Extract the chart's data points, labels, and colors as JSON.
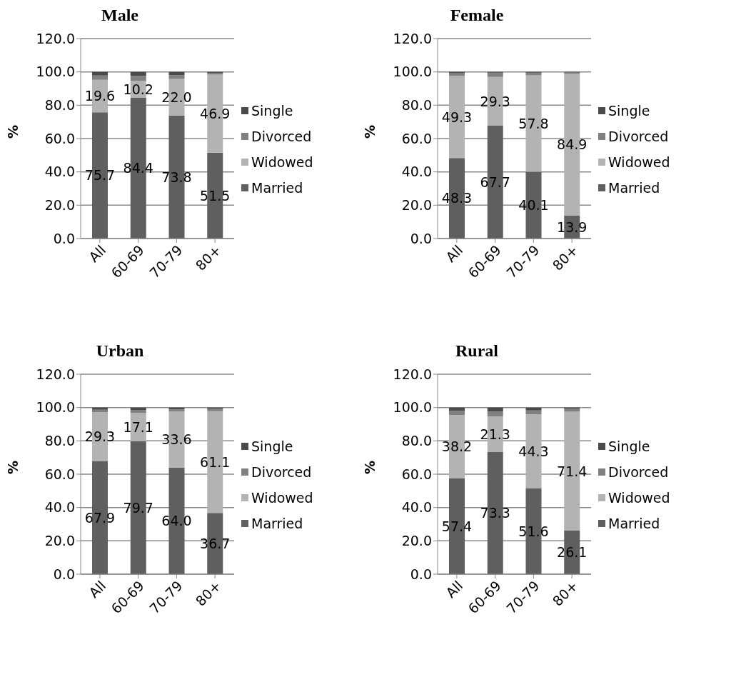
{
  "chart_data": [
    {
      "type": "bar",
      "title": "Male",
      "ylabel": "%",
      "categories": [
        "All",
        "60-69",
        "70-79",
        "80+"
      ],
      "stacked": true,
      "grid": "y",
      "legend": "right",
      "ylim": [
        0,
        120
      ],
      "yticks": [
        {
          "value": 0,
          "label": "0.0"
        },
        {
          "value": 20,
          "label": "20.0"
        },
        {
          "value": 40,
          "label": "40.0"
        },
        {
          "value": 60,
          "label": "60.0"
        },
        {
          "value": 80,
          "label": "80.0"
        },
        {
          "value": 100,
          "label": "100.0"
        },
        {
          "value": 120,
          "label": "120.0"
        }
      ],
      "series": [
        {
          "name": "Married",
          "color": "#5f5f5f",
          "values": [
            75.7,
            84.4,
            73.8,
            51.5
          ],
          "value_labels": [
            "75.7",
            "84.4",
            "73.8",
            "51.5"
          ]
        },
        {
          "name": "Widowed",
          "color": "#b3b3b3",
          "values": [
            19.6,
            10.2,
            22.0,
            46.9
          ],
          "value_labels": [
            "19.6",
            "10.2",
            "22.0",
            "46.9"
          ]
        },
        {
          "name": "Divorced",
          "color": "#808080",
          "values": [
            2.5,
            3.0,
            2.2,
            1.0
          ]
        },
        {
          "name": "Single",
          "color": "#4a4a4a",
          "values": [
            2.2,
            2.4,
            2.0,
            0.6
          ]
        }
      ]
    },
    {
      "type": "bar",
      "title": "Female",
      "ylabel": "%",
      "categories": [
        "All",
        "60-69",
        "70-79",
        "80+"
      ],
      "stacked": true,
      "grid": "y",
      "legend": "right",
      "ylim": [
        0,
        120
      ],
      "yticks": [
        {
          "value": 0,
          "label": "0.0"
        },
        {
          "value": 20,
          "label": "20.0"
        },
        {
          "value": 40,
          "label": "40.0"
        },
        {
          "value": 60,
          "label": "60.0"
        },
        {
          "value": 80,
          "label": "80.0"
        },
        {
          "value": 100,
          "label": "100.0"
        },
        {
          "value": 120,
          "label": "120.0"
        }
      ],
      "series": [
        {
          "name": "Married",
          "color": "#5f5f5f",
          "values": [
            48.3,
            67.7,
            40.1,
            13.9
          ],
          "value_labels": [
            "48.3",
            "67.7",
            "40.1",
            "13.9"
          ]
        },
        {
          "name": "Widowed",
          "color": "#b3b3b3",
          "values": [
            49.3,
            29.3,
            57.8,
            84.9
          ],
          "value_labels": [
            "49.3",
            "29.3",
            "57.8",
            "84.9"
          ]
        },
        {
          "name": "Divorced",
          "color": "#808080",
          "values": [
            1.8,
            2.5,
            1.6,
            0.8
          ]
        },
        {
          "name": "Single",
          "color": "#4a4a4a",
          "values": [
            0.6,
            0.5,
            0.5,
            0.4
          ]
        }
      ]
    },
    {
      "type": "bar",
      "title": "Urban",
      "ylabel": "%",
      "categories": [
        "All",
        "60-69",
        "70-79",
        "80+"
      ],
      "stacked": true,
      "grid": "y",
      "legend": "right",
      "ylim": [
        0,
        120
      ],
      "yticks": [
        {
          "value": 0,
          "label": "0.0"
        },
        {
          "value": 20,
          "label": "20.0"
        },
        {
          "value": 40,
          "label": "40.0"
        },
        {
          "value": 60,
          "label": "60.0"
        },
        {
          "value": 80,
          "label": "80.0"
        },
        {
          "value": 100,
          "label": "100.0"
        },
        {
          "value": 120,
          "label": "120.0"
        }
      ],
      "series": [
        {
          "name": "Married",
          "color": "#5f5f5f",
          "values": [
            67.9,
            79.7,
            64.0,
            36.7
          ],
          "value_labels": [
            "67.9",
            "79.7",
            "64.0",
            "36.7"
          ]
        },
        {
          "name": "Widowed",
          "color": "#b3b3b3",
          "values": [
            29.3,
            17.1,
            33.6,
            61.1
          ],
          "value_labels": [
            "29.3",
            "17.1",
            "33.6",
            "61.1"
          ]
        },
        {
          "name": "Divorced",
          "color": "#808080",
          "values": [
            1.5,
            1.8,
            1.3,
            1.4
          ]
        },
        {
          "name": "Single",
          "color": "#4a4a4a",
          "values": [
            1.3,
            1.4,
            1.1,
            0.8
          ]
        }
      ]
    },
    {
      "type": "bar",
      "title": "Rural",
      "ylabel": "%",
      "categories": [
        "All",
        "60-69",
        "70-79",
        "80+"
      ],
      "stacked": true,
      "grid": "y",
      "legend": "right",
      "ylim": [
        0,
        120
      ],
      "yticks": [
        {
          "value": 0,
          "label": "0.0"
        },
        {
          "value": 20,
          "label": "20.0"
        },
        {
          "value": 40,
          "label": "40.0"
        },
        {
          "value": 60,
          "label": "60.0"
        },
        {
          "value": 80,
          "label": "80.0"
        },
        {
          "value": 100,
          "label": "100.0"
        },
        {
          "value": 120,
          "label": "120.0"
        }
      ],
      "series": [
        {
          "name": "Married",
          "color": "#5f5f5f",
          "values": [
            57.4,
            73.3,
            51.6,
            26.1
          ],
          "value_labels": [
            "57.4",
            "73.3",
            "51.6",
            "26.1"
          ]
        },
        {
          "name": "Widowed",
          "color": "#b3b3b3",
          "values": [
            38.2,
            21.3,
            44.3,
            71.4
          ],
          "value_labels": [
            "38.2",
            "21.3",
            "44.3",
            "71.4"
          ]
        },
        {
          "name": "Divorced",
          "color": "#808080",
          "values": [
            2.4,
            3.0,
            2.3,
            1.7
          ]
        },
        {
          "name": "Single",
          "color": "#4a4a4a",
          "values": [
            2.0,
            2.4,
            1.8,
            0.8
          ]
        }
      ]
    }
  ]
}
